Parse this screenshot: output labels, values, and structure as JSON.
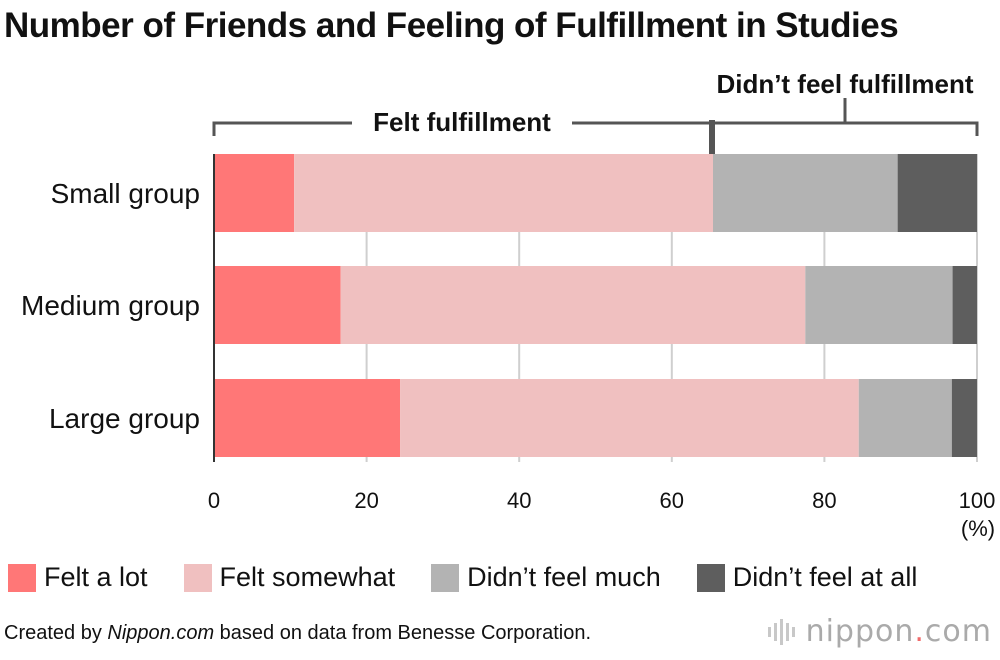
{
  "title": "Number of Friends and Feeling of Fulfillment in Studies",
  "brackets": {
    "felt": "Felt fulfillment",
    "not_felt": "Didn’t feel fulfillment"
  },
  "unit": "(%)",
  "footer": {
    "prefix": "Created by ",
    "site": "Nippon.com",
    "suffix": " based on data from Benesse Corporation."
  },
  "logo": {
    "word": "nippon",
    "dot": ".",
    "tld": "com"
  },
  "chart_data": {
    "type": "bar",
    "orientation": "horizontal",
    "stacked": true,
    "categories": [
      "Small group",
      "Medium group",
      "Large group"
    ],
    "series": [
      {
        "name": "Felt a lot",
        "color": "#ff7777",
        "values": [
          10.5,
          16.6,
          24.4
        ]
      },
      {
        "name": "Felt somewhat",
        "color": "#f0c0c0",
        "values": [
          54.9,
          60.9,
          60.1
        ]
      },
      {
        "name": "Didn’t feel much",
        "color": "#b3b3b3",
        "values": [
          24.2,
          19.3,
          12.2
        ]
      },
      {
        "name": "Didn’t feel at all",
        "color": "#5e5e5e",
        "values": [
          10.4,
          3.2,
          3.3
        ]
      }
    ],
    "xlim": [
      0,
      100
    ],
    "xticks": [
      0,
      20,
      40,
      60,
      80,
      100
    ],
    "grid": true,
    "legend": "bottom"
  }
}
